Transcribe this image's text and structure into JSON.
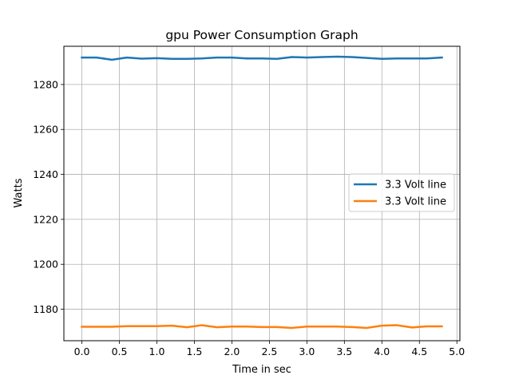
{
  "chart_data": {
    "type": "line",
    "title": "gpu Power Consumption Graph",
    "xlabel": "Time in sec",
    "ylabel": "Watts",
    "xlim": [
      -0.24,
      5.04
    ],
    "ylim": [
      1166,
      1297
    ],
    "xticks": [
      0.0,
      0.5,
      1.0,
      1.5,
      2.0,
      2.5,
      3.0,
      3.5,
      4.0,
      4.5,
      5.0
    ],
    "xtick_labels": [
      "0.0",
      "0.5",
      "1.0",
      "1.5",
      "2.0",
      "2.5",
      "3.0",
      "3.5",
      "4.0",
      "4.5",
      "5.0"
    ],
    "yticks": [
      1180,
      1200,
      1220,
      1240,
      1260,
      1280
    ],
    "ytick_labels": [
      "1180",
      "1200",
      "1220",
      "1240",
      "1260",
      "1280"
    ],
    "grid": true,
    "legend_position": "center-right",
    "x": [
      0.0,
      0.2,
      0.4,
      0.6,
      0.8,
      1.0,
      1.2,
      1.4,
      1.6,
      1.8,
      2.0,
      2.2,
      2.4,
      2.6,
      2.8,
      3.0,
      3.2,
      3.4,
      3.6,
      3.8,
      4.0,
      4.2,
      4.4,
      4.6,
      4.8
    ],
    "series": [
      {
        "name": "3.3 Volt line",
        "color": "#1f77b4",
        "values": [
          1292.0,
          1292.0,
          1291.0,
          1292.0,
          1291.5,
          1291.7,
          1291.4,
          1291.4,
          1291.6,
          1292.0,
          1292.0,
          1291.6,
          1291.6,
          1291.4,
          1292.2,
          1292.0,
          1292.2,
          1292.4,
          1292.2,
          1291.8,
          1291.4,
          1291.6,
          1291.6,
          1291.6,
          1292.0
        ]
      },
      {
        "name": "3.3 Volt line",
        "color": "#ff7f0e",
        "values": [
          1172.2,
          1172.2,
          1172.2,
          1172.5,
          1172.5,
          1172.5,
          1172.7,
          1172.0,
          1172.9,
          1172.0,
          1172.3,
          1172.3,
          1172.1,
          1172.1,
          1171.7,
          1172.3,
          1172.3,
          1172.3,
          1172.1,
          1171.7,
          1172.7,
          1172.9,
          1171.9,
          1172.4,
          1172.4
        ]
      }
    ]
  }
}
